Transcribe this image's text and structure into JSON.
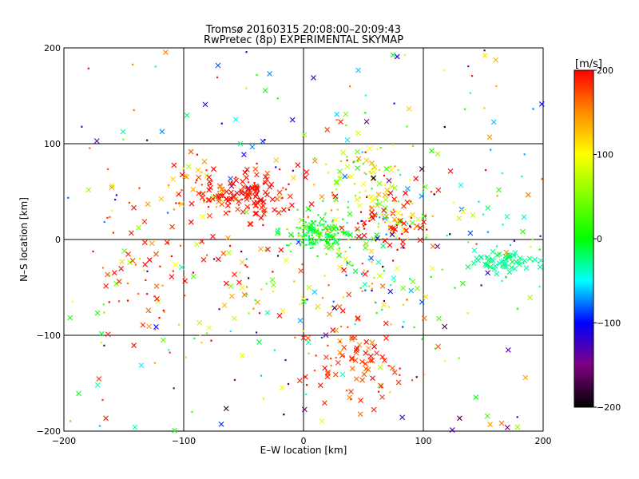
{
  "chart_data": {
    "type": "scatter",
    "title": "Tromsø 20160315 20:08:00–20:09:43",
    "subtitle": "RwPretec (8p) EXPERIMENTAL SKYMAP",
    "xlabel": "E–W location [km]",
    "ylabel": "N–S location [km]",
    "xlim": [
      -200,
      200
    ],
    "ylim": [
      -200,
      200
    ],
    "x_ticks": [
      -200,
      -100,
      0,
      100,
      200
    ],
    "y_ticks": [
      -200,
      -100,
      0,
      100,
      200
    ],
    "x_tick_labels": [
      "−200",
      "−100",
      "0",
      "100",
      "200"
    ],
    "y_tick_labels": [
      "−200",
      "−100",
      "0",
      "100",
      "200"
    ],
    "grid": true,
    "colorbar": {
      "label": "[m/s]",
      "range": [
        -200,
        200
      ],
      "ticks": [
        200,
        100,
        0,
        -100,
        -200
      ],
      "tick_labels": [
        "200",
        "100",
        "0",
        "−100",
        "−200"
      ],
      "stops": [
        {
          "v": 200,
          "color": "#ff0000"
        },
        {
          "v": 150,
          "color": "#ff8c00"
        },
        {
          "v": 100,
          "color": "#ffff00"
        },
        {
          "v": 50,
          "color": "#80ff00"
        },
        {
          "v": 0,
          "color": "#00ff00"
        },
        {
          "v": -50,
          "color": "#00ffff"
        },
        {
          "v": -100,
          "color": "#0000ff"
        },
        {
          "v": -150,
          "color": "#800080"
        },
        {
          "v": -200,
          "color": "#000000"
        }
      ]
    },
    "point_markers": [
      "cross (x)",
      "dot"
    ],
    "clusters": [
      {
        "x": -45,
        "y": 45,
        "sx": 18,
        "sy": 12,
        "n": 120,
        "v": 195,
        "dv": 15,
        "cross_frac": 0.75
      },
      {
        "x": -90,
        "y": 55,
        "sx": 15,
        "sy": 15,
        "n": 50,
        "v": 180,
        "dv": 40,
        "cross_frac": 0.5
      },
      {
        "x": 15,
        "y": 5,
        "sx": 14,
        "sy": 10,
        "n": 160,
        "v": 0,
        "dv": 25,
        "cross_frac": 0.3
      },
      {
        "x": 45,
        "y": 60,
        "sx": 20,
        "sy": 25,
        "n": 80,
        "v": 70,
        "dv": 60,
        "cross_frac": 0.5
      },
      {
        "x": 75,
        "y": 20,
        "sx": 15,
        "sy": 15,
        "n": 90,
        "v": 120,
        "dv": 90,
        "cross_frac": 0.5
      },
      {
        "x": 165,
        "y": -22,
        "sx": 14,
        "sy": 6,
        "n": 70,
        "v": -30,
        "dv": 10,
        "cross_frac": 0.8
      },
      {
        "x": 40,
        "y": -125,
        "sx": 20,
        "sy": 25,
        "n": 80,
        "v": 185,
        "dv": 20,
        "cross_frac": 0.7
      },
      {
        "x": -130,
        "y": -30,
        "sx": 25,
        "sy": 40,
        "n": 60,
        "v": 180,
        "dv": 30,
        "cross_frac": 0.5
      },
      {
        "x": 50,
        "y": -40,
        "sx": 30,
        "sy": 30,
        "n": 60,
        "v": 40,
        "dv": 120,
        "cross_frac": 0.5
      },
      {
        "x": 110,
        "y": 40,
        "sx": 40,
        "sy": 35,
        "n": 60,
        "v": 20,
        "dv": 130,
        "cross_frac": 0.4
      },
      {
        "x": -30,
        "y": -40,
        "sx": 40,
        "sy": 35,
        "n": 60,
        "v": 100,
        "dv": 110,
        "cross_frac": 0.4
      }
    ],
    "background_points": {
      "n": 260,
      "v_min": -200,
      "v_max": 200,
      "cross_frac": 0.45
    }
  }
}
